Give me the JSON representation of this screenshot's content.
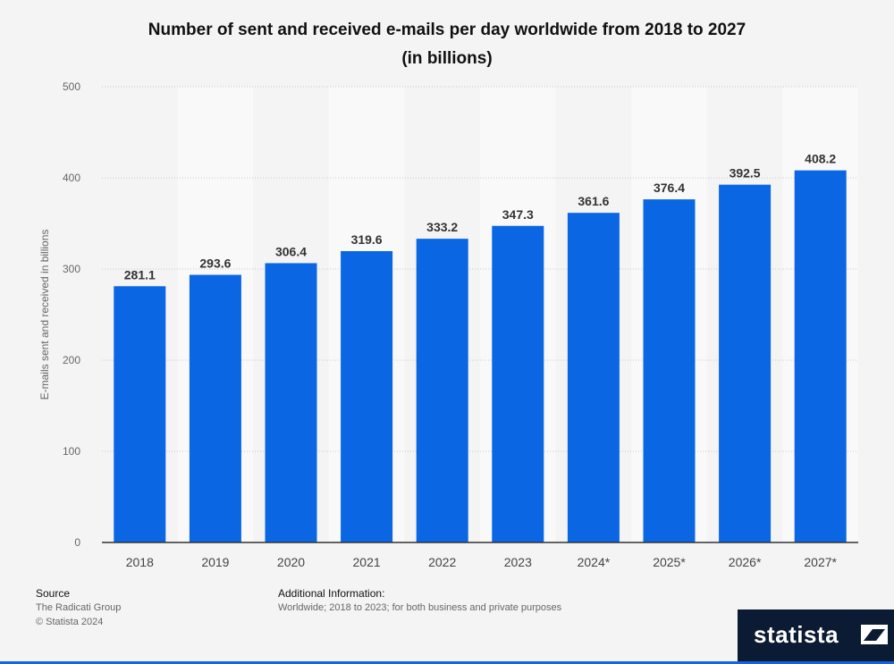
{
  "title_line1": "Number of sent and received e-mails per day worldwide from 2018 to 2027",
  "title_line2": "(in billions)",
  "footer": {
    "source_label": "Source",
    "source_value": "The Radicati Group",
    "copyright": "© Statista 2024",
    "info_label": "Additional Information:",
    "info_value": "Worldwide; 2018 to 2023; for both business and private purposes"
  },
  "brand": {
    "name": "statista",
    "logo_icon": "statista-logo-icon"
  },
  "colors": {
    "bar": "#0b66e4",
    "background": "#f4f4f4",
    "band": "#f9f9f9",
    "brand": "#0b1b34"
  },
  "chart_data": {
    "type": "bar",
    "categories": [
      "2018",
      "2019",
      "2020",
      "2021",
      "2022",
      "2023",
      "2024*",
      "2025*",
      "2026*",
      "2027*"
    ],
    "values": [
      281.1,
      293.6,
      306.4,
      319.6,
      333.2,
      347.3,
      361.6,
      376.4,
      392.5,
      408.2
    ],
    "value_labels": [
      "281.1",
      "293.6",
      "306.4",
      "319.6",
      "333.2",
      "347.3",
      "361.6",
      "376.4",
      "392.5",
      "408.2"
    ],
    "ylabel": "E-mails sent and received in billions",
    "ylim": [
      0,
      500
    ],
    "yticks": [
      0,
      100,
      200,
      300,
      400,
      500
    ],
    "grid": true
  }
}
